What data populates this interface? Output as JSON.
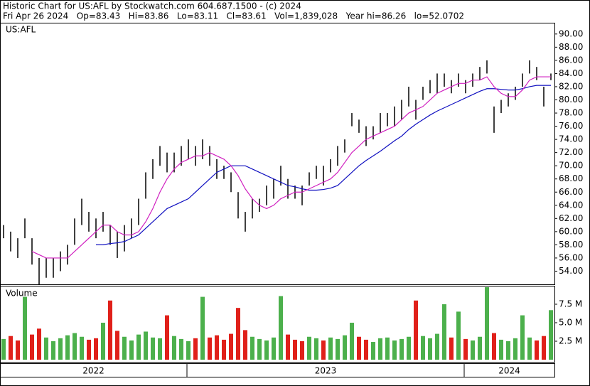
{
  "header": {
    "line1": "Historic Chart for US:AFL by Stockwatch.com 604.687.1500 - (c) 2024",
    "line2": "Fri Apr 26 2024   Op=83.43   Hi=83.86   Lo=83.11   Cl=83.61   Vol=1,839,028   Year hi=86.26   lo=52.0702"
  },
  "chart_data": {
    "type": "ohlc",
    "symbol": "US:AFL",
    "price_color": "#000000",
    "high": [
      61,
      60,
      59,
      62,
      59,
      56,
      56,
      56,
      57,
      58,
      62,
      65,
      63,
      62,
      63,
      61,
      60,
      61,
      62,
      65,
      69,
      71,
      73,
      72,
      72,
      73,
      74,
      73,
      74,
      73,
      71,
      70,
      69,
      66,
      63,
      65,
      65,
      67,
      68,
      70,
      68,
      67,
      67,
      69,
      70,
      70,
      71,
      73,
      74,
      78,
      77,
      76,
      76,
      78,
      78,
      79,
      80,
      82,
      80,
      82,
      83,
      84,
      84,
      83,
      84,
      83,
      84,
      85,
      86,
      79,
      80,
      81,
      82,
      84,
      86,
      85,
      82,
      84
    ],
    "low": [
      59,
      57,
      56,
      59,
      55,
      52,
      53,
      53,
      54,
      55,
      58,
      61,
      60,
      59,
      60,
      58,
      56,
      57,
      59,
      61,
      65,
      68,
      70,
      69,
      69,
      70,
      71,
      70,
      71,
      70,
      68,
      68,
      66,
      62,
      60,
      62,
      63,
      64,
      65,
      67,
      65,
      65,
      64,
      67,
      68,
      67,
      69,
      70,
      72,
      76,
      75,
      73,
      74,
      75,
      76,
      76,
      77,
      79,
      77,
      80,
      81,
      81,
      82,
      81,
      82,
      81,
      82,
      83,
      84,
      75,
      78,
      79,
      80,
      82,
      84,
      83,
      79,
      83
    ],
    "ma_fast": {
      "color": "#d020c0",
      "values": [
        null,
        null,
        null,
        null,
        57,
        56.5,
        56,
        56,
        56,
        56,
        57,
        58,
        59,
        60,
        61,
        61,
        60,
        59.5,
        59.5,
        60,
        61.5,
        63.5,
        66,
        68,
        69.5,
        70.5,
        71,
        71.5,
        71.5,
        72,
        71.5,
        71,
        70,
        68.5,
        66.5,
        65,
        64,
        63.5,
        64,
        65,
        65.5,
        66,
        66,
        66.5,
        67,
        67.5,
        68,
        69,
        70.5,
        72,
        73,
        74,
        74.5,
        75,
        75.5,
        76,
        77,
        78,
        78.5,
        79,
        80,
        81,
        81.5,
        82,
        82.5,
        82.5,
        83,
        83,
        83.5,
        82,
        81,
        80.5,
        80.5,
        81.5,
        83,
        83.5,
        83.5,
        83.5
      ]
    },
    "ma_slow": {
      "color": "#1010c0",
      "values": [
        null,
        null,
        null,
        null,
        null,
        null,
        null,
        null,
        null,
        null,
        null,
        null,
        null,
        58,
        58,
        58.2,
        58.3,
        58.5,
        59,
        59.5,
        60.5,
        61.5,
        62.5,
        63.5,
        64,
        64.5,
        65,
        66,
        67,
        68,
        69,
        69.5,
        70,
        70,
        70,
        69.5,
        69,
        68.5,
        68,
        67.5,
        67,
        66.8,
        66.5,
        66.3,
        66.3,
        66.4,
        66.6,
        67,
        68,
        69,
        70,
        70.8,
        71.5,
        72.2,
        73,
        73.8,
        74.5,
        75.5,
        76.3,
        77,
        77.7,
        78.3,
        78.8,
        79.3,
        79.8,
        80.3,
        80.8,
        81.3,
        81.7,
        81.7,
        81.6,
        81.5,
        81.5,
        81.7,
        82,
        82.2,
        82.2,
        82.2
      ]
    },
    "xlim": [
      -0.5,
      77.5
    ],
    "ylim": [
      52,
      91.6
    ],
    "yticks": [
      {
        "value": 54,
        "label": "54.00"
      },
      {
        "value": 56,
        "label": "56.00"
      },
      {
        "value": 58,
        "label": "58.00"
      },
      {
        "value": 60,
        "label": "60.00"
      },
      {
        "value": 62,
        "label": "62.00"
      },
      {
        "value": 64,
        "label": "64.00"
      },
      {
        "value": 66,
        "label": "66.00"
      },
      {
        "value": 68,
        "label": "68.00"
      },
      {
        "value": 70,
        "label": "70.00"
      },
      {
        "value": 72,
        "label": "72.00"
      },
      {
        "value": 74,
        "label": "74.00"
      },
      {
        "value": 76,
        "label": "76.00"
      },
      {
        "value": 78,
        "label": "78.00"
      },
      {
        "value": 80,
        "label": "80.00"
      },
      {
        "value": 82,
        "label": "82.00"
      },
      {
        "value": 84,
        "label": "84.00"
      },
      {
        "value": 86,
        "label": "86.00"
      },
      {
        "value": 88,
        "label": "88.00"
      },
      {
        "value": 90,
        "label": "90.00"
      }
    ],
    "volume": {
      "label": "Volume",
      "up_color": "#4cb04c",
      "down_color": "#e0201a",
      "ylim": [
        0,
        9.9
      ],
      "yticks": [
        {
          "value": 2.5,
          "label": "2.5 M"
        },
        {
          "value": 5,
          "label": "5.0 M"
        },
        {
          "value": 7.5,
          "label": "7.5 M"
        }
      ],
      "values": [
        2.8,
        3.2,
        2.6,
        8.5,
        3.4,
        4.2,
        3.0,
        2.5,
        2.9,
        3.3,
        3.6,
        3.1,
        2.7,
        2.9,
        5.0,
        8.0,
        3.9,
        3.1,
        2.6,
        3.4,
        3.8,
        3.0,
        2.9,
        6.0,
        3.2,
        2.8,
        2.5,
        2.9,
        8.5,
        3.0,
        3.3,
        2.7,
        3.5,
        7.0,
        4.0,
        3.1,
        2.8,
        2.6,
        3.0,
        8.6,
        3.4,
        2.7,
        2.5,
        3.1,
        2.9,
        2.6,
        3.0,
        2.8,
        3.3,
        5.0,
        3.1,
        2.7,
        2.4,
        2.9,
        3.0,
        2.6,
        2.8,
        3.1,
        8.0,
        3.2,
        2.9,
        3.5,
        7.5,
        3.0,
        6.5,
        2.8,
        2.6,
        3.1,
        9.8,
        3.6,
        2.7,
        2.5,
        2.9,
        6.0,
        3.0,
        2.6,
        3.2,
        6.7
      ]
    },
    "year_labels": [
      "2022",
      "2023",
      "2024"
    ],
    "year_breaks": [
      25.8,
      64.8
    ]
  }
}
